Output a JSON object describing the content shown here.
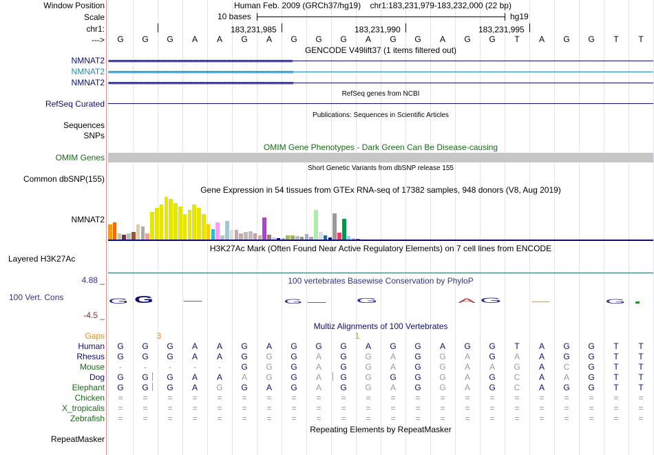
{
  "bases": [
    "G",
    "G",
    "G",
    "A",
    "A",
    "G",
    "A",
    "G",
    "G",
    "G",
    "A",
    "G",
    "G",
    "A",
    "G",
    "G",
    "T",
    "A",
    "G",
    "G",
    "T",
    "T"
  ],
  "header": {
    "window_label": "Window Position",
    "assembly_text": "Human Feb. 2009 (GRCh37/hg19)",
    "position_text": "chr1:183,231,979-183,232,000 (22 bp)",
    "scale_label": "Scale",
    "scale_text": "10 bases",
    "db_text": "hg19",
    "chrom_label": "chr1:",
    "coords": [
      "183,231,985",
      "183,231,990",
      "183,231,995"
    ],
    "arrow_label": "--->"
  },
  "tracks": {
    "gencode": {
      "title": "GENCODE V49lift37 (1 items filtered out)",
      "genes": [
        "NMNAT2",
        "NMNAT2",
        "NMNAT2"
      ],
      "colors": [
        "#0c0c78",
        "#1a8cb4",
        "#0c0c78"
      ]
    },
    "refseq": {
      "title": "RefSeq genes from NCBI",
      "label": "RefSeq Curated",
      "color": "#0c0c78"
    },
    "publications": {
      "title": "Publications: Sequences in Scientific Articles",
      "label1": "Sequences",
      "label2": "SNPs"
    },
    "omim": {
      "title": "OMIM Gene Phenotypes - Dark Green Can Be Disease-causing",
      "label": "OMIM Genes",
      "color": "#166a16",
      "bar_color": "#c6c6c6"
    },
    "dbsnp": {
      "title": "Short Genetic Variants from dbSNP release 155",
      "label": "Common dbSNP(155)"
    },
    "gtex": {
      "title": "Gene Expression in 54 tissues from GTEx RNA-seq of 17382 samples, 948 donors (V8, Aug 2019)",
      "label": "NMNAT2",
      "values": [
        0.35,
        0.4,
        0.15,
        0.12,
        0.15,
        0.18,
        0.35,
        0.3,
        0.15,
        0.65,
        0.75,
        0.82,
        1.0,
        0.95,
        0.85,
        0.78,
        0.6,
        0.7,
        0.82,
        0.74,
        0.6,
        0.35,
        0.25,
        0.4,
        0.1,
        0.44,
        0.22,
        0.22,
        0.15,
        0.18,
        0.2,
        0.15,
        0.1,
        0.52,
        0.12,
        0.05,
        0.04,
        0.04,
        0.1,
        0.1,
        0.08,
        0.06,
        0.13,
        0.07,
        0.7,
        0.18,
        0.1,
        0.05,
        0.62,
        0.16,
        0.48,
        0.08,
        0.04,
        0.02
      ],
      "colors": [
        "#ff9900",
        "#ff6600",
        "#ccc6a0",
        "#7a2c46",
        "#bbbbbb",
        "#a0522d",
        "#dccdb0",
        "#aaaaaa",
        "#ff9999",
        "#e6e600",
        "#e6e600",
        "#e6e600",
        "#e6e600",
        "#e6e600",
        "#e6e600",
        "#e6e600",
        "#e6e600",
        "#e6e600",
        "#e6e600",
        "#e6e600",
        "#e6e600",
        "#ffcc00",
        "#00ccdd",
        "#ff99ff",
        "#c0c0c0",
        "#a0c8d4",
        "#dddddd",
        "#c8a8a8",
        "#c8a8a8",
        "#bbbbbb",
        "#c8b8b8",
        "#c4a0a8",
        "#c8a8a8",
        "#aa44cc",
        "#aa7777",
        "#cccccc",
        "#0000aa",
        "#aaaaaa",
        "#99bb66",
        "#aaaa55",
        "#bbbbbb",
        "#999977",
        "#aaaacc",
        "#aaaaaa",
        "#aaeeaa",
        "#dddddd",
        "#2266aa",
        "#0000ee",
        "#999999",
        "#ff3366",
        "#009944",
        "#99ccff",
        "#ccaacc",
        "#ff00bb"
      ]
    },
    "h3k27ac": {
      "title": "H3K27Ac Mark (Often Found Near Active Regulatory Elements) on 7 cell lines from ENCODE",
      "label": "Layered H3K27Ac"
    },
    "phylop": {
      "title": "100 vertebrates Basewise Conservation by PhyloP",
      "label": "100 Vert. Cons",
      "max_label": "4.88 _",
      "min_label": "-4.5 _",
      "title_color": "#32328c",
      "max_color": "#32328c",
      "min_color": "#8c2a1a"
    },
    "multiz": {
      "title": "Multiz Alignments of 100 Vertebrates",
      "title_color": "#0c0c78",
      "gaps_label": "Gaps",
      "gaps_color": "#dc8c1e",
      "gap_marks": [
        {
          "index": 1,
          "text": "3"
        },
        {
          "index": 9,
          "text": "1"
        }
      ],
      "species": [
        {
          "name": "Human",
          "color": "#0c0c78",
          "seq": "GGGAAGAGGGAGGAGGTAGGTT"
        },
        {
          "name": "Rhesus",
          "color": "#0c0c78",
          "seq": "GGGAAGGGAGGAGGAGAAGGTT"
        },
        {
          "name": "Mouse",
          "color": "#166a16",
          "seq": "-----GGGAGGAGGAAGACGTT"
        },
        {
          "name": "Dog",
          "color": "#0c0c78",
          "seq": "GGGAAAGGAGGGGGAGCAAGTT"
        },
        {
          "name": "Elephant",
          "color": "#166a16",
          "seq": "GGGAGGAGAGGAGGAGCAGGTT"
        },
        {
          "name": "Chicken",
          "color": "#166a16",
          "seq": "======================"
        },
        {
          "name": "X_tropicalis",
          "color": "#166a16",
          "seq": "======================"
        },
        {
          "name": "Zebrafish",
          "color": "#166a16",
          "seq": "======================"
        }
      ]
    },
    "repeatmasker": {
      "title": "Repeating Elements by RepeatMasker",
      "label": "RepeatMasker"
    }
  }
}
